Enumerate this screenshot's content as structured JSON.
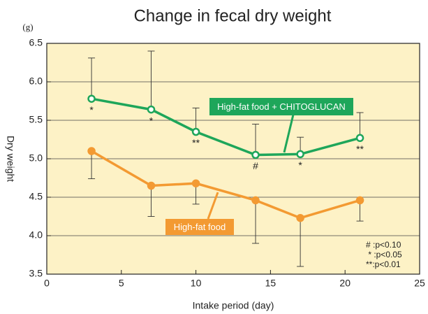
{
  "chart_data": {
    "type": "line",
    "title": "Change in fecal dry weight",
    "unit_label": "(g)",
    "x_label": "Intake period (day)",
    "y_label": "Dry weight",
    "xlim": [
      0,
      25
    ],
    "xticks": [
      0,
      5,
      10,
      15,
      20,
      25
    ],
    "ylim": [
      3.5,
      6.5
    ],
    "yticks": [
      3.5,
      {
        "value": 4,
        "label": "4.0"
      },
      4.5,
      {
        "value": 5,
        "label": "5.0"
      },
      5.5,
      {
        "value": 6,
        "label": "6.0"
      },
      6.5
    ],
    "grid": true,
    "x": [
      3,
      7,
      10,
      14,
      17,
      21
    ],
    "series": [
      {
        "name": "High-fat food + CHITOGLUCAN",
        "color": "#1ea65a",
        "values": [
          5.78,
          5.64,
          5.35,
          5.05,
          5.06,
          5.27
        ],
        "errors": [
          0.53,
          0.76,
          0.31,
          0.4,
          0.22,
          0.33
        ],
        "error_direction": "up",
        "marks": [
          "*",
          "*",
          "**",
          "#",
          "*",
          "**"
        ]
      },
      {
        "name": "High-fat food",
        "color": "#f39a32",
        "values": [
          5.1,
          4.65,
          4.68,
          4.46,
          4.23,
          4.46
        ],
        "errors": [
          0.36,
          0.4,
          0.27,
          0.56,
          0.63,
          0.27
        ],
        "error_direction": "down"
      }
    ],
    "notes": [
      "# :p<0.10",
      " * :p<0.05",
      "**:p<0.01"
    ]
  }
}
